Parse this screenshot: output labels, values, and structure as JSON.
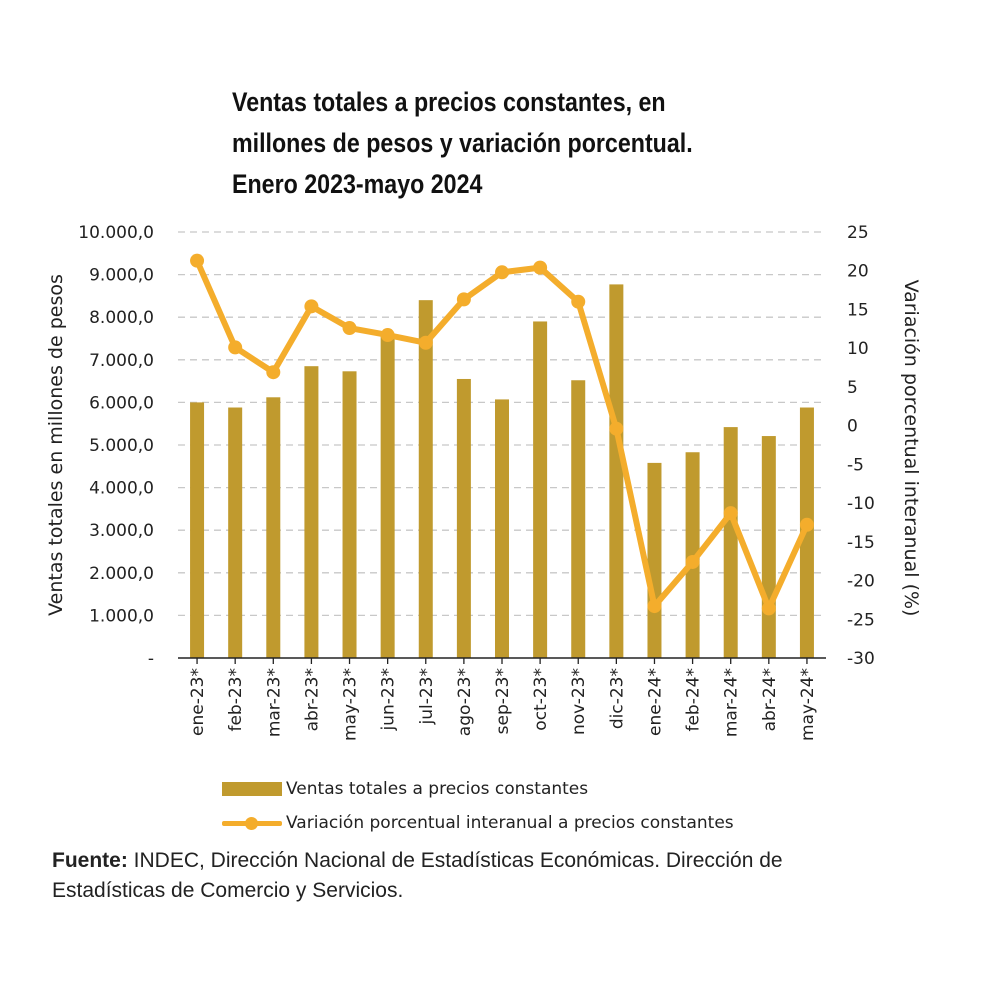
{
  "chart_data": {
    "type": "bar",
    "title_lines": [
      "Ventas totales a precios constantes, en",
      "millones de pesos y variación porcentual.",
      "Enero 2023-mayo 2024"
    ],
    "categories": [
      "ene-23*",
      "feb-23*",
      "mar-23*",
      "abr-23*",
      "may-23*",
      "jun-23*",
      "jul-23*",
      "ago-23*",
      "sep-23*",
      "oct-23*",
      "nov-23*",
      "dic-23*",
      "ene-24*",
      "feb-24*",
      "mar-24*",
      "abr-24*",
      "may-24*"
    ],
    "series": [
      {
        "name": "Ventas totales a precios constantes",
        "type": "bar",
        "axis": "left",
        "color": "#c09a2e",
        "values": [
          6000,
          5880,
          6120,
          6850,
          6730,
          7600,
          8400,
          6550,
          6070,
          7900,
          6520,
          8770,
          4580,
          4830,
          5420,
          5210,
          5880
        ]
      },
      {
        "name": "Variación porcentual interanual a precios constantes",
        "type": "line",
        "axis": "right",
        "color": "#f4ad2c",
        "values": [
          21.3,
          10.1,
          6.9,
          15.4,
          12.6,
          11.7,
          10.7,
          16.3,
          19.8,
          20.4,
          16.0,
          -0.4,
          -23.3,
          -17.6,
          -11.3,
          -23.6,
          -12.8
        ]
      }
    ],
    "ylabel": "Ventas totales en millones de pesos",
    "y2label": "Variación porcentual interanual (%)",
    "ylim": [
      0,
      10000
    ],
    "y2lim": [
      -30,
      25
    ],
    "yticks": [
      "-",
      "1.000,0",
      "2.000,0",
      "3.000,0",
      "4.000,0",
      "5.000,0",
      "6.000,0",
      "7.000,0",
      "8.000,0",
      "9.000,0",
      "10.000,0"
    ],
    "y2ticks": [
      "-30",
      "-25",
      "-20",
      "-15",
      "-10",
      "-5",
      "0",
      "5",
      "10",
      "15",
      "20",
      "25"
    ],
    "grid": true,
    "legend_position": "bottom"
  },
  "legend": {
    "bar_label": "Ventas totales a precios constantes",
    "line_label": "Variación porcentual interanual a precios constantes"
  },
  "source": {
    "label": "Fuente:",
    "text": " INDEC, Dirección Nacional de Estadísticas Económicas. Dirección de Estadísticas de Comercio y Servicios."
  }
}
